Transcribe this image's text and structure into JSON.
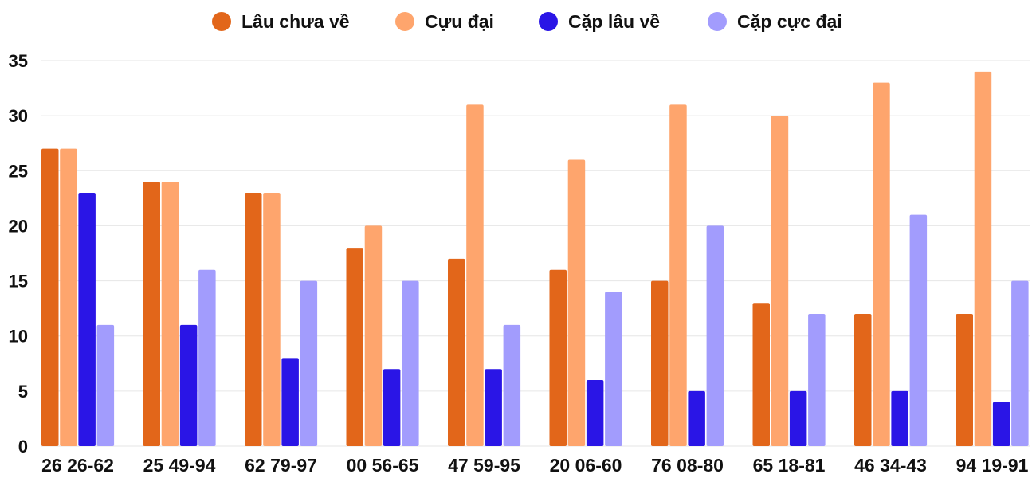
{
  "chart_data": {
    "type": "bar",
    "title": "",
    "xlabel": "",
    "ylabel": "",
    "ylim": [
      0,
      35
    ],
    "yticks": [
      0,
      5,
      10,
      15,
      20,
      25,
      30,
      35
    ],
    "grid": true,
    "legend_position": "top-center",
    "categories": [
      "26 26-62",
      "25 49-94",
      "62 79-97",
      "00 56-65",
      "47 59-95",
      "20 06-60",
      "76 08-80",
      "65 18-81",
      "46 34-43",
      "94 19-91"
    ],
    "series": [
      {
        "name": "Lâu chưa về",
        "color": "#e2661a",
        "values": [
          27,
          24,
          23,
          18,
          17,
          16,
          15,
          13,
          12,
          12
        ]
      },
      {
        "name": "Cựu đại",
        "color": "#fea56d",
        "values": [
          27,
          24,
          23,
          20,
          31,
          26,
          31,
          30,
          33,
          34
        ]
      },
      {
        "name": "Cặp lâu về",
        "color": "#2a15e6",
        "values": [
          23,
          11,
          8,
          7,
          7,
          6,
          5,
          5,
          5,
          4
        ]
      },
      {
        "name": "Cặp cực đại",
        "color": "#a29cfd",
        "values": [
          11,
          16,
          15,
          15,
          11,
          14,
          20,
          12,
          21,
          15
        ]
      }
    ]
  }
}
